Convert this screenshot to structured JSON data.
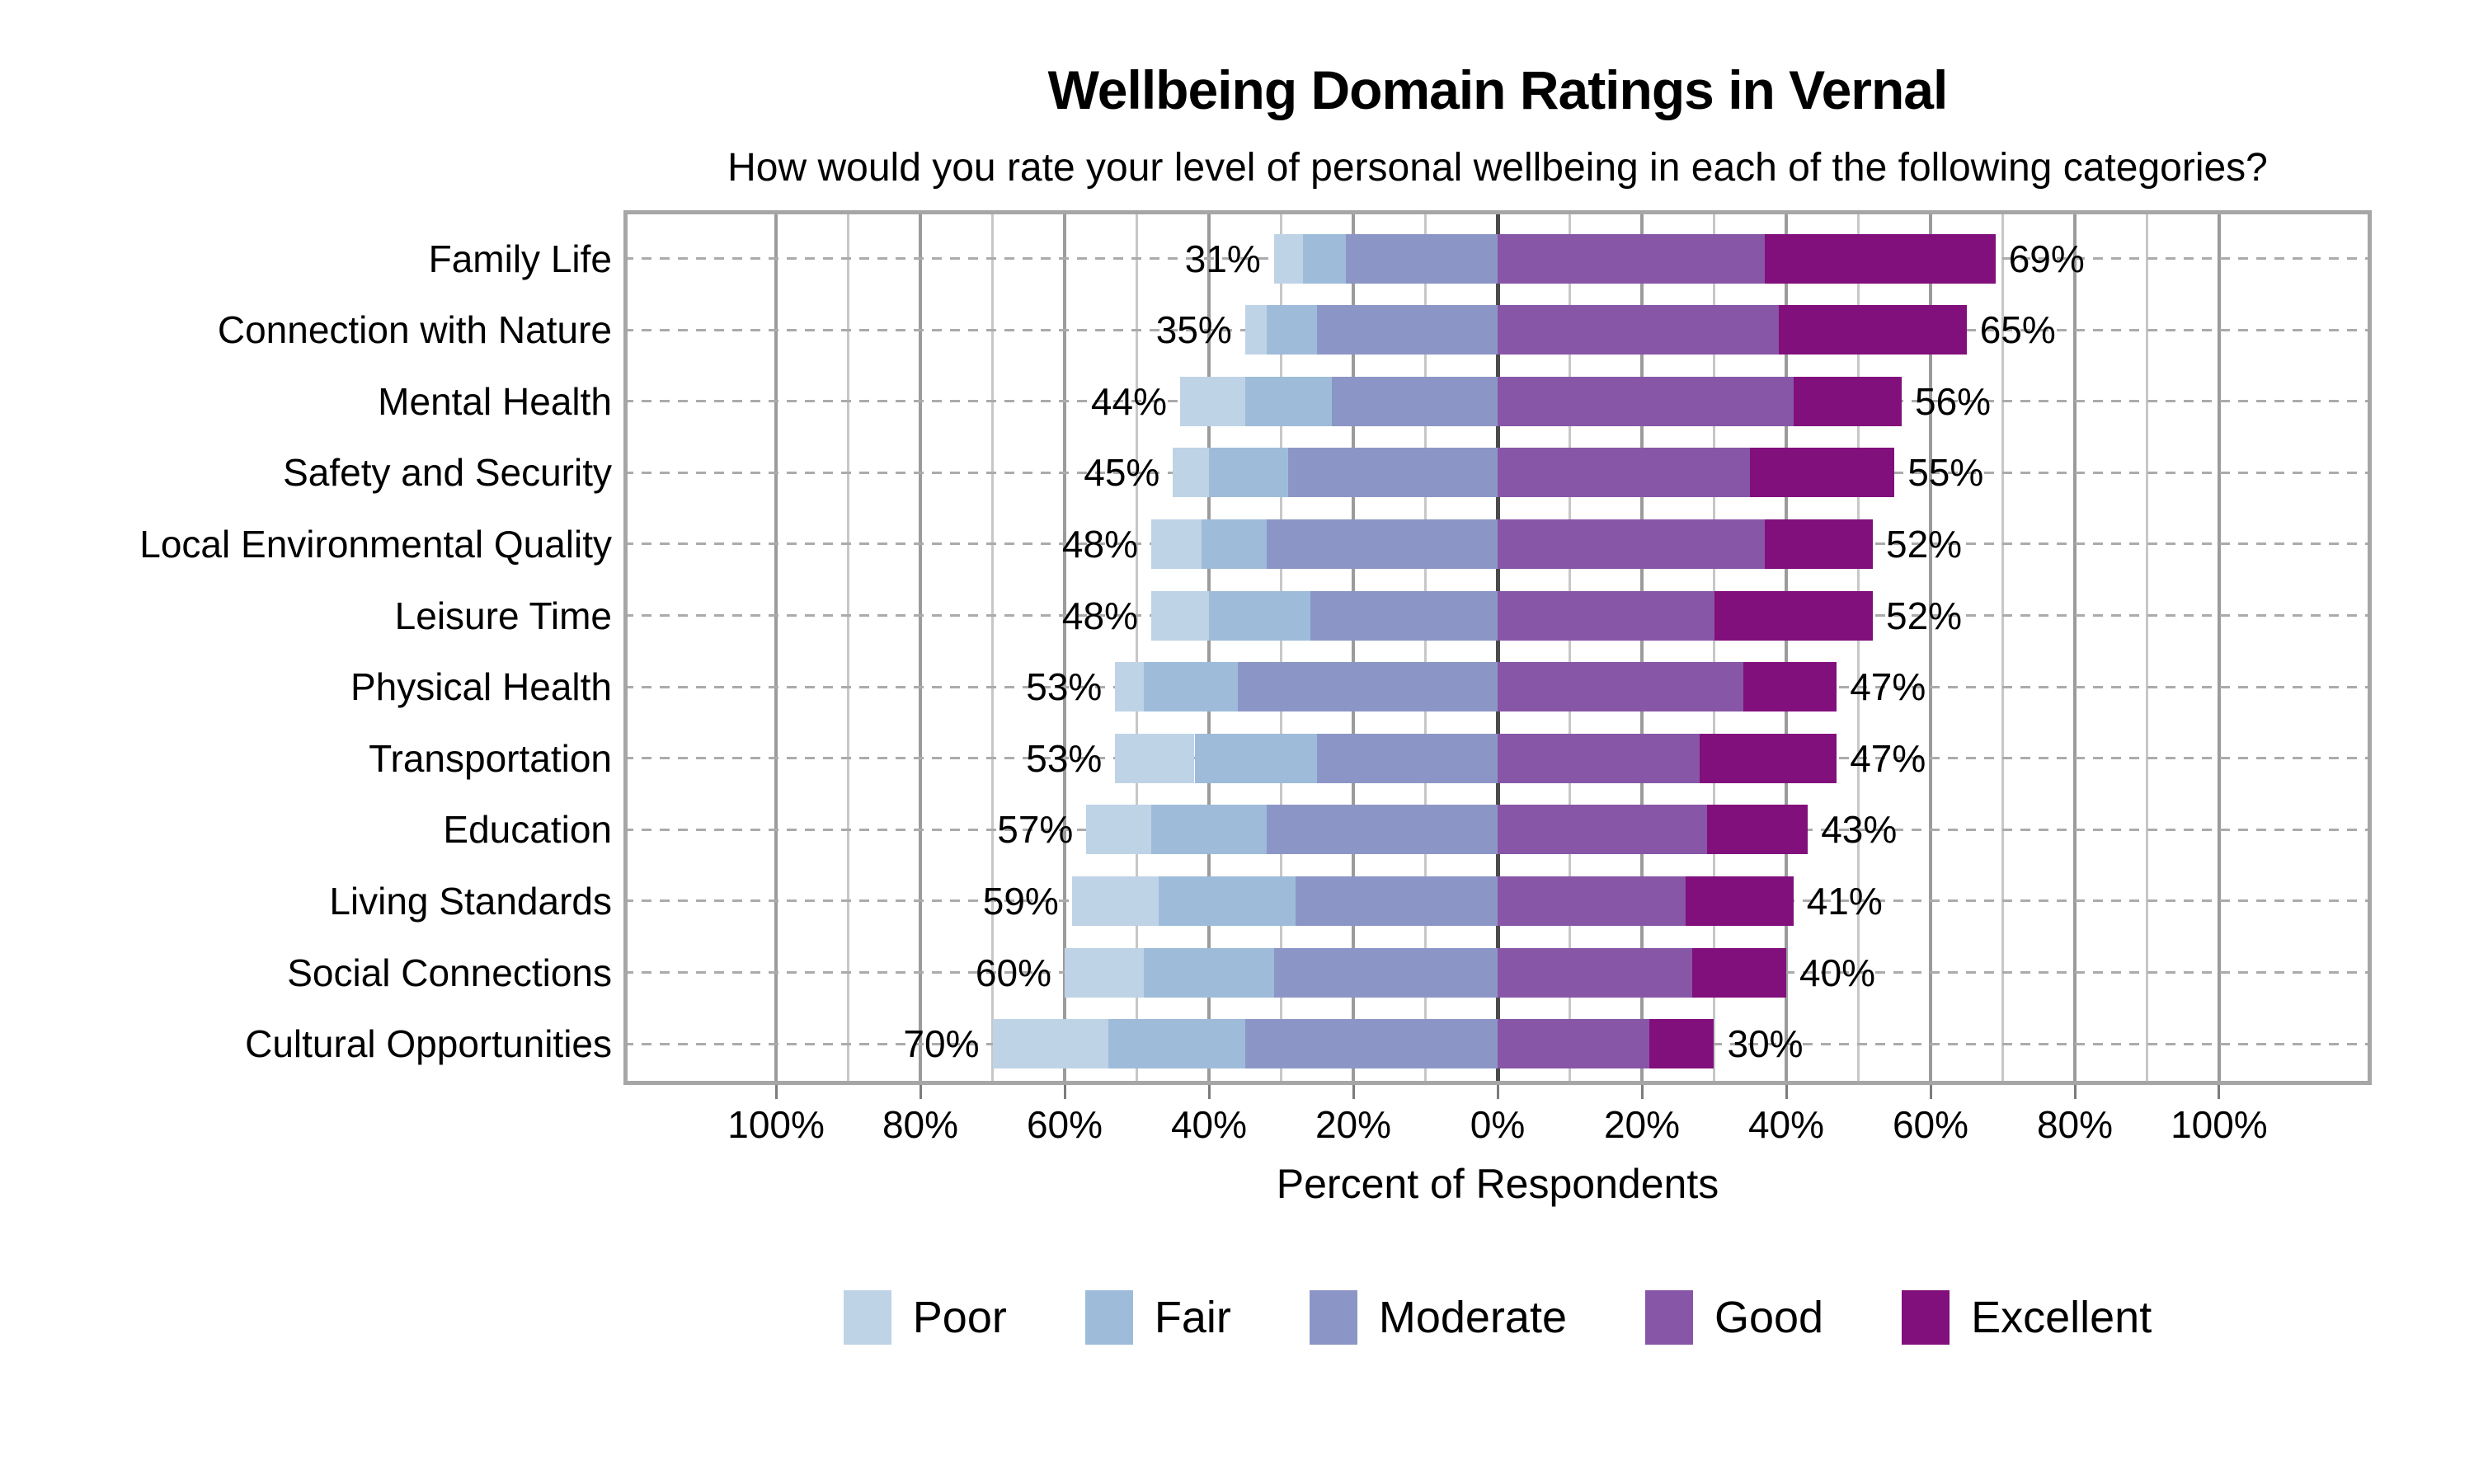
{
  "title": "Wellbeing Domain Ratings in Vernal",
  "subtitle": "How would you rate your level of personal wellbeing in each of the following categories?",
  "chart_data": {
    "type": "bar",
    "variant": "diverging-stacked-horizontal-likert",
    "title": "Wellbeing Domain Ratings in Vernal",
    "subtitle": "How would you rate your level of personal wellbeing in each of the following categories?",
    "xlabel": "Percent of Respondents",
    "xlim": [
      -121.15,
      121.15
    ],
    "x_tick_values": [
      -100,
      -80,
      -60,
      -40,
      -20,
      0,
      20,
      40,
      60,
      80,
      100
    ],
    "x_tick_labels": [
      "100%",
      "80%",
      "60%",
      "40%",
      "20%",
      "0%",
      "20%",
      "40%",
      "60%",
      "80%",
      "100%"
    ],
    "grid": {
      "minor_every_pct": 10,
      "major_every_pct": 20,
      "zero_line": true,
      "row_guides": "dashed"
    },
    "categories": [
      "Family Life",
      "Connection with Nature",
      "Mental Health",
      "Safety and Security",
      "Local Environmental Quality",
      "Leisure Time",
      "Physical Health",
      "Transportation",
      "Education",
      "Living Standards",
      "Social Connections",
      "Cultural Opportunities"
    ],
    "series": [
      {
        "name": "Poor",
        "color": "#bfd3e6",
        "side": "left",
        "values": [
          4,
          3,
          9,
          5,
          7,
          8,
          4,
          11,
          9,
          12,
          11,
          16
        ]
      },
      {
        "name": "Fair",
        "color": "#9ebcda",
        "side": "left",
        "values": [
          6,
          7,
          12,
          11,
          9,
          14,
          13,
          17,
          16,
          19,
          18,
          19
        ]
      },
      {
        "name": "Moderate",
        "color": "#8c96c6",
        "side": "left",
        "values": [
          21,
          25,
          23,
          29,
          32,
          26,
          36,
          25,
          32,
          28,
          31,
          35
        ]
      },
      {
        "name": "Good",
        "color": "#8856a7",
        "side": "right",
        "values": [
          37,
          39,
          41,
          35,
          37,
          30,
          34,
          28,
          29,
          26,
          27,
          21
        ]
      },
      {
        "name": "Excellent",
        "color": "#810f7c",
        "side": "right",
        "values": [
          32,
          26,
          15,
          20,
          15,
          22,
          13,
          19,
          14,
          15,
          13,
          9
        ]
      }
    ],
    "left_total_labels": [
      "31%",
      "35%",
      "44%",
      "45%",
      "48%",
      "48%",
      "53%",
      "53%",
      "57%",
      "59%",
      "60%",
      "70%"
    ],
    "right_total_labels": [
      "69%",
      "65%",
      "56%",
      "55%",
      "52%",
      "52%",
      "47%",
      "47%",
      "43%",
      "41%",
      "40%",
      "30%"
    ],
    "legend": {
      "position": "bottom",
      "entries": [
        "Poor",
        "Fair",
        "Moderate",
        "Good",
        "Excellent"
      ]
    }
  },
  "colors": {
    "background": "#ffffff",
    "text": "#000000",
    "plot_border": "#a6a6a6",
    "grid_minor": "#c7c7c7",
    "grid_major": "#9b9b9b",
    "zero_line": "#4a4a4a",
    "row_guide": "#ababab",
    "tick": "#7c7c7c"
  }
}
